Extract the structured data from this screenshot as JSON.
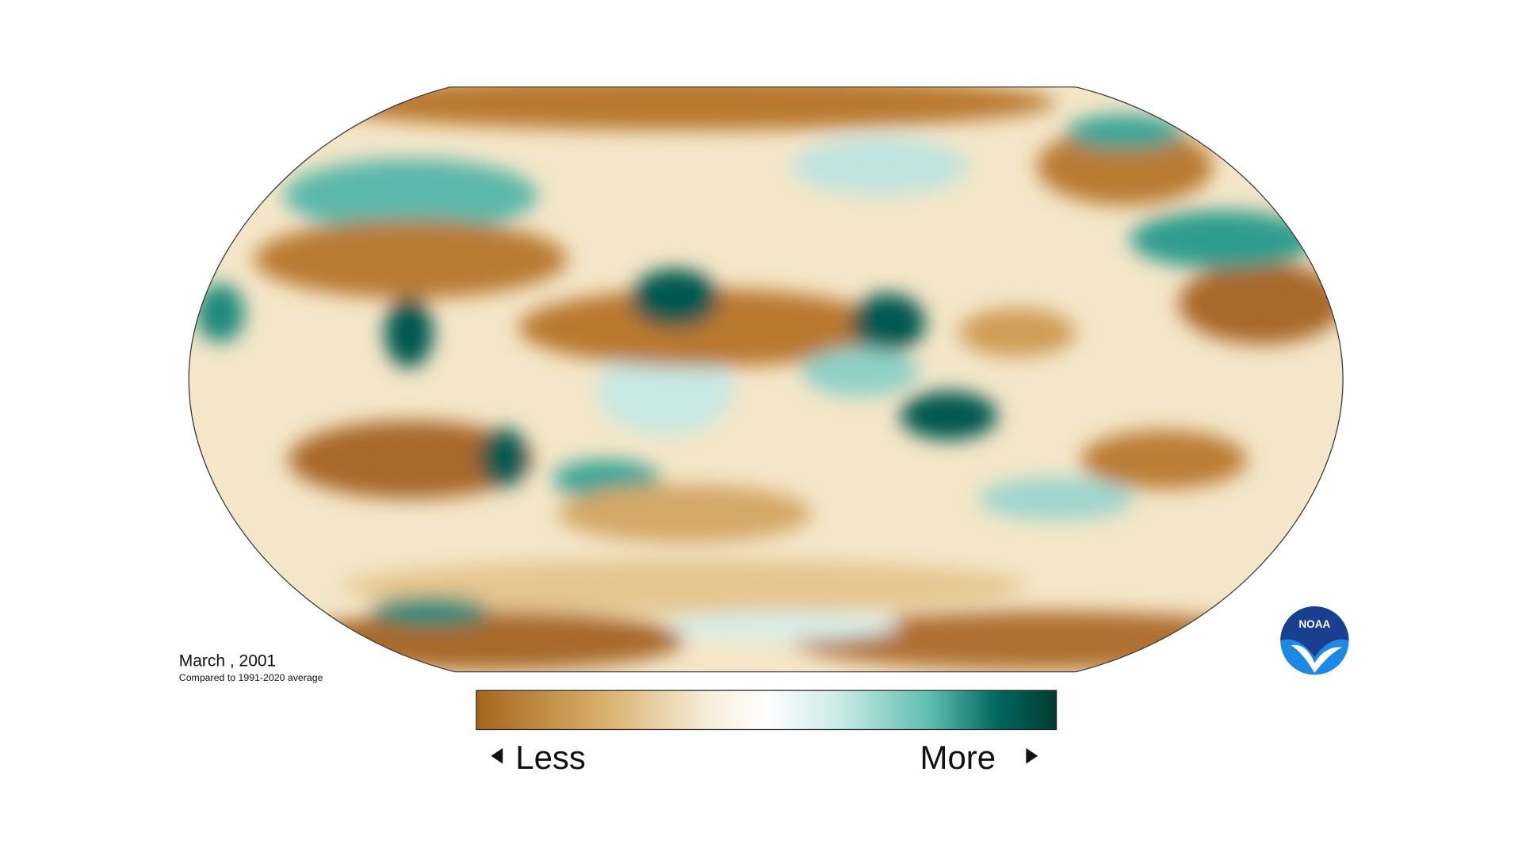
{
  "map": {
    "date": "March , 2001",
    "baseline": "Compared to 1991-2020 average"
  },
  "legend": {
    "low": "Less",
    "high": "More"
  },
  "logo": "NOAA"
}
